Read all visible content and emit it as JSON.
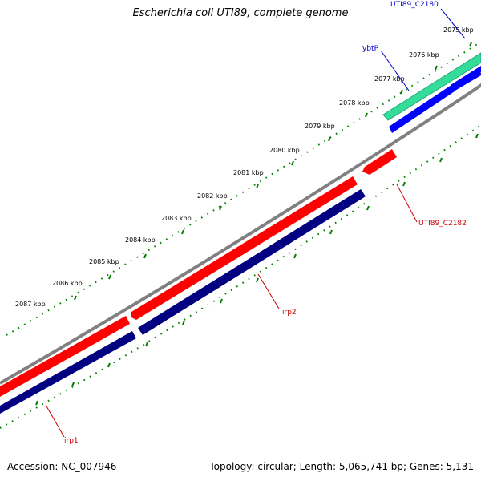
{
  "title": "Escherichia coli UTI89, complete genome",
  "footer": {
    "accession": "Accession: NC_007946",
    "topology": "Topology: circular; Length: 5,065,741 bp; Genes: 5,131"
  },
  "ticks": [
    "2075 kbp",
    "2076 kbp",
    "2077 kbp",
    "2078 kbp",
    "2079 kbp",
    "2080 kbp",
    "2081 kbp",
    "2082 kbp",
    "2083 kbp",
    "2084 kbp",
    "2085 kbp",
    "2086 kbp",
    "2087 kbp"
  ],
  "features": [
    {
      "name": "UTI89_C2180",
      "color": "#0000cc"
    },
    {
      "name": "ybtP",
      "color": "#0000cc"
    },
    {
      "name": "UTI89_C2182",
      "color": "#cc0000"
    },
    {
      "name": "irp2",
      "color": "#cc0000"
    },
    {
      "name": "irp1",
      "color": "#cc0000"
    }
  ],
  "colors": {
    "backbone": "#808080",
    "forward_cds": "#ff0000",
    "reverse_cds": "#0000ff",
    "cds_track_dark": "#000080",
    "other_feature": "#33dd99",
    "tick_marks": "#008000"
  }
}
